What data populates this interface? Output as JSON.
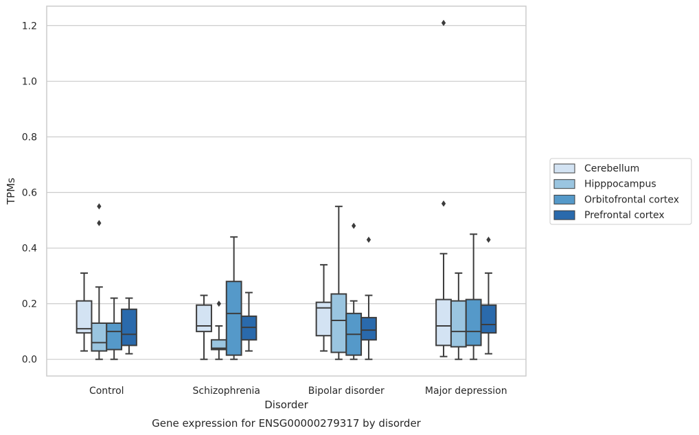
{
  "chart_data": {
    "type": "box",
    "title": "Gene expression for ENSG00000279317 by disorder",
    "xlabel": "Disorder",
    "ylabel": "TPMs",
    "ylim": [
      -0.06,
      1.27
    ],
    "yticks": [
      0.0,
      0.2,
      0.4,
      0.6,
      0.8,
      1.0,
      1.2
    ],
    "ytick_labels": [
      "0.0",
      "0.2",
      "0.4",
      "0.6",
      "0.8",
      "1.0",
      "1.2"
    ],
    "grid": "horizontal",
    "legend_position": "right",
    "categories": [
      "Control",
      "Schizophrenia",
      "Bipolar disorder",
      "Major depression"
    ],
    "series": [
      {
        "name": "Cerebellum",
        "color": "#d3e3f3",
        "boxes": [
          {
            "whislo": 0.03,
            "q1": 0.095,
            "med": 0.11,
            "q3": 0.21,
            "whishi": 0.31,
            "fliers": []
          },
          {
            "whislo": 0.0,
            "q1": 0.1,
            "med": 0.12,
            "q3": 0.195,
            "whishi": 0.23,
            "fliers": []
          },
          {
            "whislo": 0.03,
            "q1": 0.085,
            "med": 0.185,
            "q3": 0.205,
            "whishi": 0.34,
            "fliers": []
          },
          {
            "whislo": 0.01,
            "q1": 0.05,
            "med": 0.12,
            "q3": 0.215,
            "whishi": 0.38,
            "fliers": [
              0.56,
              1.21
            ]
          }
        ]
      },
      {
        "name": "Hipppocampus",
        "color": "#9ac5e0",
        "boxes": [
          {
            "whislo": 0.0,
            "q1": 0.03,
            "med": 0.06,
            "q3": 0.13,
            "whishi": 0.26,
            "fliers": [
              0.49,
              0.55
            ]
          },
          {
            "whislo": 0.0,
            "q1": 0.035,
            "med": 0.04,
            "q3": 0.07,
            "whishi": 0.12,
            "fliers": [
              0.2
            ]
          },
          {
            "whislo": 0.0,
            "q1": 0.025,
            "med": 0.14,
            "q3": 0.235,
            "whishi": 0.55,
            "fliers": []
          },
          {
            "whislo": 0.0,
            "q1": 0.045,
            "med": 0.1,
            "q3": 0.21,
            "whishi": 0.31,
            "fliers": []
          }
        ]
      },
      {
        "name": "Orbitofrontal cortex",
        "color": "#5599c9",
        "boxes": [
          {
            "whislo": 0.0,
            "q1": 0.035,
            "med": 0.1,
            "q3": 0.13,
            "whishi": 0.22,
            "fliers": []
          },
          {
            "whislo": 0.0,
            "q1": 0.015,
            "med": 0.165,
            "q3": 0.28,
            "whishi": 0.44,
            "fliers": []
          },
          {
            "whislo": 0.0,
            "q1": 0.015,
            "med": 0.09,
            "q3": 0.165,
            "whishi": 0.21,
            "fliers": [
              0.48
            ]
          },
          {
            "whislo": 0.0,
            "q1": 0.05,
            "med": 0.1,
            "q3": 0.215,
            "whishi": 0.45,
            "fliers": []
          }
        ]
      },
      {
        "name": "Prefrontal cortex",
        "color": "#2a6aac",
        "boxes": [
          {
            "whislo": 0.02,
            "q1": 0.05,
            "med": 0.09,
            "q3": 0.18,
            "whishi": 0.22,
            "fliers": []
          },
          {
            "whislo": 0.03,
            "q1": 0.07,
            "med": 0.115,
            "q3": 0.155,
            "whishi": 0.24,
            "fliers": []
          },
          {
            "whislo": 0.0,
            "q1": 0.07,
            "med": 0.105,
            "q3": 0.15,
            "whishi": 0.23,
            "fliers": [
              0.43
            ]
          },
          {
            "whislo": 0.02,
            "q1": 0.095,
            "med": 0.125,
            "q3": 0.195,
            "whishi": 0.31,
            "fliers": [
              0.43
            ]
          }
        ]
      }
    ]
  }
}
